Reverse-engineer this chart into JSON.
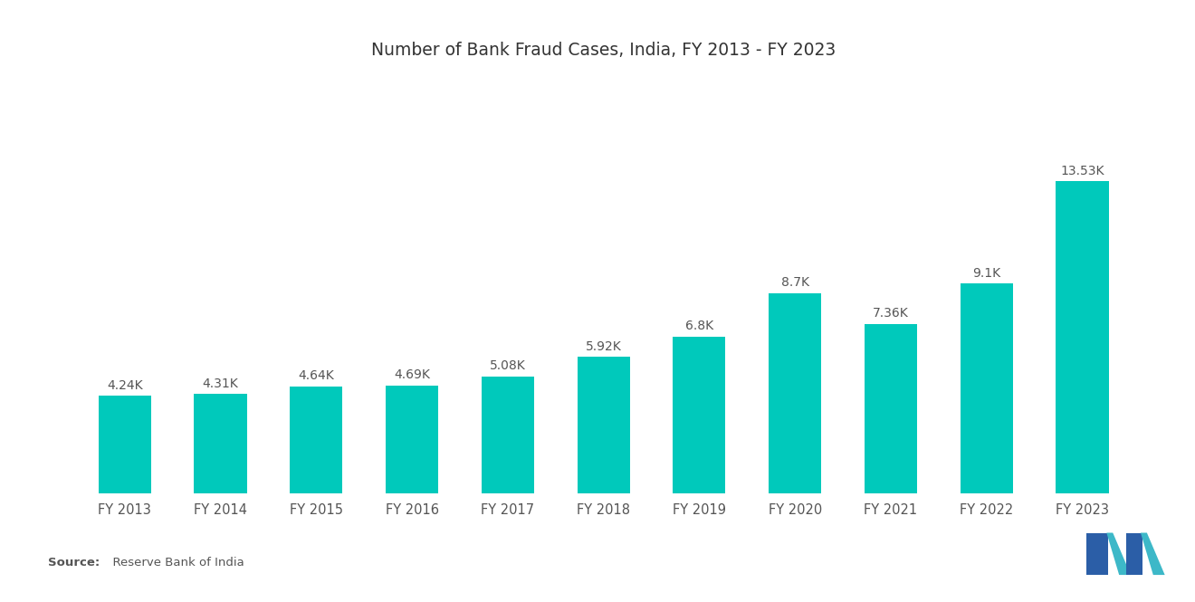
{
  "title": "Number of Bank Fraud Cases, India, FY 2013 - FY 2023",
  "categories": [
    "FY 2013",
    "FY 2014",
    "FY 2015",
    "FY 2016",
    "FY 2017",
    "FY 2018",
    "FY 2019",
    "FY 2020",
    "FY 2021",
    "FY 2022",
    "FY 2023"
  ],
  "values": [
    4.24,
    4.31,
    4.64,
    4.69,
    5.08,
    5.92,
    6.8,
    8.7,
    7.36,
    9.1,
    13.53
  ],
  "labels": [
    "4.24K",
    "4.31K",
    "4.64K",
    "4.69K",
    "5.08K",
    "5.92K",
    "6.8K",
    "8.7K",
    "7.36K",
    "9.1K",
    "13.53K"
  ],
  "bar_color": "#00C9BB",
  "background_color": "#ffffff",
  "title_fontsize": 13.5,
  "label_fontsize": 10,
  "tick_fontsize": 10.5,
  "source_bold": "Source:",
  "source_normal": "  Reserve Bank of India",
  "ylim": [
    0,
    18
  ],
  "bar_width": 0.55
}
